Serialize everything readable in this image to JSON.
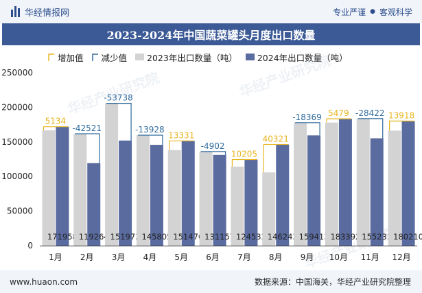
{
  "header": {
    "brand": "华经情报网",
    "right_text_1": "专业严谨",
    "right_text_2": "客观科学"
  },
  "title": "2023-2024年中国蔬菜罐头月度出口数量",
  "legend": {
    "increase": "增加值",
    "decrease": "减少值",
    "s2023": "2023年出口数量（吨）",
    "s2024": "2024年出口数量（吨）"
  },
  "footer": {
    "website": "www.huaon.com",
    "source": "数据来源：中国海关，华经产业研究院整理"
  },
  "watermark": "华经产业研究院",
  "colors": {
    "s2023": "#d3d3d3",
    "s2024": "#5a6ba0",
    "increase": "#e8b520",
    "decrease": "#2e6a9e",
    "title_bg": "#3c5a96"
  },
  "chart_data": {
    "type": "bar",
    "categories": [
      "1月",
      "2月",
      "3月",
      "4月",
      "5月",
      "6月",
      "7月",
      "8月",
      "9月",
      "10月",
      "11月",
      "12月"
    ],
    "series": [
      {
        "name": "2023年出口数量（吨）",
        "values": [
          166824,
          161785,
          205711,
          159733,
          138145,
          136059,
          114328,
          105922,
          177782,
          177913,
          183655,
          166292
        ]
      },
      {
        "name": "2024年出口数量（吨）",
        "values": [
          171958,
          119264,
          151973,
          145805,
          151476,
          131157,
          124533,
          146243,
          159413,
          183392,
          155233,
          180210
        ]
      }
    ],
    "changes": [
      5134,
      -42521,
      -53738,
      -13928,
      13331,
      -4902,
      10205,
      40321,
      -18369,
      5479,
      -28422,
      13918
    ],
    "change_labels": [
      "5134",
      "-42521",
      "-53738",
      "-13928",
      "13331",
      "-4902",
      "10205",
      "40321",
      "-18369",
      "5479",
      "-28422",
      "13918"
    ],
    "value_labels": [
      "171958",
      "119264",
      "151973",
      "145805",
      "151476",
      "131157",
      "124533",
      "146243",
      "159413",
      "183392",
      "155233",
      "180210"
    ],
    "y_ticks": [
      "0",
      "50000",
      "100000",
      "150000",
      "200000",
      "250000"
    ],
    "ylim": [
      0,
      250000
    ]
  }
}
